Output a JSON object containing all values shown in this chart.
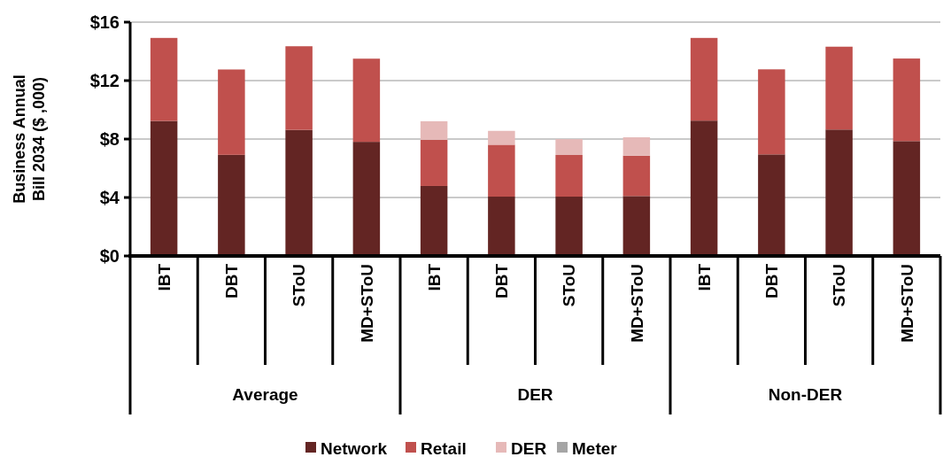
{
  "chart_data": {
    "type": "bar",
    "stacked": true,
    "ylabel": "Business Annual Bill 2034 ($ ,000)",
    "categories": [
      "IBT",
      "DBT",
      "SToU",
      "MD+SToU",
      "IBT",
      "DBT",
      "SToU",
      "MD+SToU",
      "IBT",
      "DBT",
      "SToU",
      "MD+SToU"
    ],
    "annotations": [
      "Average",
      "DER",
      "Non-DER"
    ],
    "series": [
      {
        "name": "Network",
        "color": "#632523",
        "values": [
          9.24,
          6.92,
          8.63,
          7.81,
          4.79,
          4.06,
          4.06,
          4.1,
          9.26,
          6.95,
          8.65,
          7.86
        ]
      },
      {
        "name": "Retail",
        "color": "#c0504d",
        "values": [
          5.68,
          5.84,
          5.72,
          5.69,
          3.16,
          3.55,
          2.85,
          2.76,
          5.66,
          5.82,
          5.67,
          5.65
        ]
      },
      {
        "name": "DER",
        "color": "#e6b9b8",
        "values": [
          0,
          0,
          0,
          0,
          1.27,
          0.95,
          1.08,
          1.26,
          0,
          0,
          0,
          0
        ]
      },
      {
        "name": "Meter",
        "color": "#a5a5a5",
        "values": [
          0,
          0,
          0,
          0,
          0,
          0,
          0,
          0,
          0,
          0,
          0,
          0
        ]
      }
    ],
    "ylim": [
      0,
      16
    ],
    "yticks": [
      {
        "value": 0,
        "label": "$0"
      },
      {
        "value": 4,
        "label": "$4"
      },
      {
        "value": 8,
        "label": "$8"
      },
      {
        "value": 12,
        "label": "$12"
      },
      {
        "value": 16,
        "label": "$16"
      }
    ],
    "grid": "y",
    "legend": "bottom"
  }
}
